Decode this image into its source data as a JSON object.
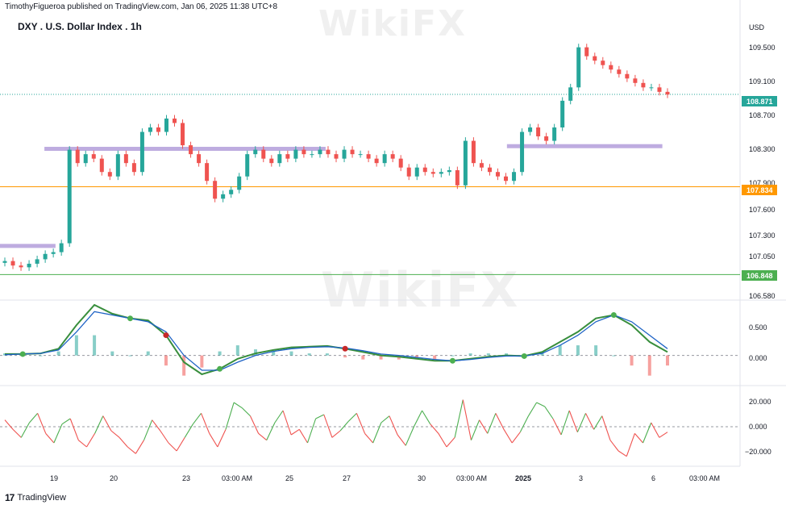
{
  "header": {
    "publisher": "TimothyFigueroa published on TradingView.com, Jan 06, 2025 11:38 UTC+8",
    "title": "DXY . U.S. Dollar Index . 1h"
  },
  "footer": {
    "brand": "TradingView"
  },
  "watermark": {
    "text": "WikiFX"
  },
  "chart_data": [
    {
      "type": "candlestick",
      "title": "DXY . U.S. Dollar Index . 1h",
      "currency": "USD",
      "ylim": [
        106.58,
        109.75
      ],
      "yticks": [
        106.58,
        107.05,
        107.3,
        107.6,
        107.9,
        108.3,
        108.7,
        109.1,
        109.5
      ],
      "xticks": [
        "19",
        "20",
        "23",
        "03:00 AM",
        "25",
        "27",
        "30",
        "03:00 AM",
        "2025",
        "3",
        "6",
        "03:00 AM"
      ],
      "ohlc_close_series": [
        107.0,
        106.95,
        106.93,
        106.97,
        107.02,
        107.08,
        107.1,
        107.2,
        108.25,
        108.1,
        108.2,
        108.15,
        108.0,
        107.95,
        108.2,
        108.1,
        108.0,
        108.45,
        108.5,
        108.45,
        108.6,
        108.55,
        108.3,
        108.2,
        108.1,
        107.9,
        107.7,
        107.75,
        107.8,
        107.95,
        108.2,
        108.25,
        108.15,
        108.1,
        108.2,
        108.15,
        108.25,
        108.2,
        108.2,
        108.25,
        108.2,
        108.15,
        108.25,
        108.2,
        108.2,
        108.15,
        108.1,
        108.2,
        108.15,
        108.05,
        107.95,
        108.05,
        108.0,
        107.98,
        108.0,
        108.02,
        107.85,
        108.35,
        108.1,
        108.05,
        108.0,
        107.95,
        107.9,
        108.0,
        108.45,
        108.5,
        108.4,
        108.35,
        108.5,
        108.8,
        108.95,
        109.4,
        109.3,
        109.25,
        109.2,
        109.15,
        109.1,
        109.05,
        109.0,
        108.95,
        108.95,
        108.9,
        108.87
      ],
      "last_price": 108.871,
      "last_price_label": "108.871",
      "levels": [
        {
          "label": "107.834",
          "value": 107.834,
          "color": "#ff9800"
        },
        {
          "label": "106.848",
          "value": 106.848,
          "color": "#4caf50"
        }
      ],
      "zones": [
        {
          "value": 108.26,
          "x_start": 0.06,
          "x_end": 0.44,
          "color": "#b39ddb"
        },
        {
          "value": 108.29,
          "x_start": 0.685,
          "x_end": 0.895,
          "color": "#b39ddb"
        },
        {
          "value": 107.17,
          "x_start": 0.0,
          "x_end": 0.075,
          "color": "#b39ddb"
        }
      ],
      "colors": {
        "up": "#26a69a",
        "down": "#ef5350"
      }
    },
    {
      "type": "line",
      "name": "oscillator",
      "ylim": [
        -0.4,
        0.75
      ],
      "yticks": [
        0.5,
        0.0
      ],
      "series": [
        {
          "color": "#388e3c",
          "values": [
            0.02,
            0.02,
            0.03,
            0.1,
            0.45,
            0.75,
            0.62,
            0.55,
            0.52,
            0.3,
            -0.1,
            -0.28,
            -0.2,
            -0.05,
            0.03,
            0.08,
            0.12,
            0.13,
            0.14,
            0.1,
            0.05,
            0.0,
            -0.02,
            -0.05,
            -0.08,
            -0.08,
            -0.05,
            -0.02,
            0.0,
            -0.01,
            0.05,
            0.2,
            0.35,
            0.55,
            0.6,
            0.45,
            0.2,
            0.05
          ]
        },
        {
          "color": "#1e63c5",
          "values": [
            0.01,
            0.02,
            0.03,
            0.08,
            0.35,
            0.65,
            0.6,
            0.55,
            0.5,
            0.35,
            0.0,
            -0.22,
            -0.22,
            -0.1,
            0.0,
            0.06,
            0.1,
            0.12,
            0.13,
            0.11,
            0.07,
            0.02,
            0.0,
            -0.03,
            -0.06,
            -0.08,
            -0.06,
            -0.03,
            -0.01,
            -0.01,
            0.03,
            0.15,
            0.3,
            0.5,
            0.6,
            0.5,
            0.3,
            0.1
          ]
        }
      ]
    },
    {
      "type": "line",
      "name": "momentum",
      "ylim": [
        -27,
        27
      ],
      "yticks": [
        20.0,
        0.0,
        -20.0
      ],
      "ytick_labels": [
        "20.000",
        "0.000",
        "−20.000"
      ],
      "values": [
        5,
        -2,
        -8,
        3,
        10,
        -5,
        -12,
        2,
        6,
        -10,
        -15,
        -5,
        8,
        -3,
        -8,
        -15,
        -20,
        -10,
        5,
        -3,
        -12,
        -18,
        -8,
        2,
        10,
        -5,
        -15,
        -2,
        18,
        14,
        8,
        -5,
        -10,
        3,
        12,
        -6,
        -2,
        -12,
        6,
        9,
        -8,
        -3,
        4,
        10,
        -5,
        -12,
        3,
        8,
        -6,
        -14,
        0,
        12,
        2,
        -5,
        -15,
        -8,
        20,
        -10,
        5,
        -5,
        10,
        -2,
        -12,
        -4,
        8,
        18,
        15,
        6,
        -6,
        12,
        -4,
        10,
        -2,
        8,
        -10,
        -18,
        -22,
        -5,
        -12,
        3,
        -8,
        -4
      ],
      "colors": {
        "positive": "#4caf50",
        "negative": "#ef5350"
      }
    }
  ],
  "price_labels": {
    "p106_580": "106.580",
    "p107_050": "107.050",
    "p107_300": "107.300",
    "p107_600": "107.600",
    "p107_900": "107.900",
    "p108_300": "108.300",
    "p108_700": "108.700",
    "p109_100": "109.100",
    "p109_500": "109.500",
    "osc_0_500": "0.500",
    "osc_0_000": "0.000",
    "mom_20": "20.000",
    "mom_0": "0.000",
    "mom_m20": "−20.000",
    "currency": "USD"
  },
  "time_labels": {
    "d19": "19",
    "d20": "20",
    "d23": "23",
    "t1": "03:00 AM",
    "d25": "25",
    "d27": "27",
    "d30": "30",
    "t2": "03:00 AM",
    "y2025": "2025",
    "d3": "3",
    "d6": "6",
    "t3": "03:00 AM"
  }
}
